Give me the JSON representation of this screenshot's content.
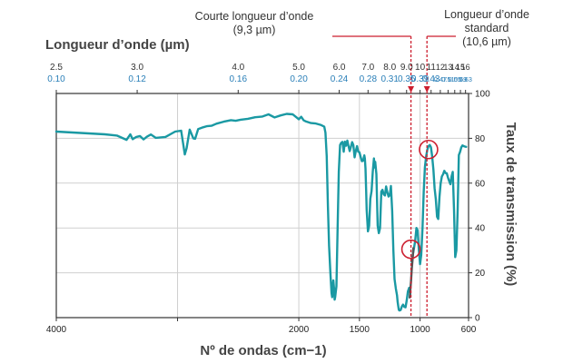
{
  "chart_data": {
    "type": "line",
    "xlabel": "Nº de ondas (cm−1)",
    "x2label": "Longueur d’onde (µm)",
    "ylabel": "Taux de transmission (%)",
    "xlim": [
      4000,
      600
    ],
    "ylim": [
      0,
      100
    ],
    "x_ticks": [
      4000,
      3000,
      2000,
      1500,
      1000,
      600
    ],
    "x_tick_labels": [
      "4000",
      "2000",
      "1500",
      "1000",
      "600"
    ],
    "x_tick_label_values": [
      4000,
      2000,
      1500,
      1000,
      600
    ],
    "y_ticks": [
      0,
      20,
      40,
      60,
      80,
      100
    ],
    "y_tick_labels": [
      "0",
      "20",
      "40",
      "60",
      "80",
      "100"
    ],
    "top_ticks": [
      {
        "um": "2.5",
        "inv": "0.10",
        "x": 4000
      },
      {
        "um": "3.0",
        "inv": "0.12",
        "x": 3333
      },
      {
        "um": "4.0",
        "inv": "0.16",
        "x": 2500
      },
      {
        "um": "5.0",
        "inv": "0.20",
        "x": 2000
      },
      {
        "um": "6.0",
        "inv": "0.24",
        "x": 1667
      },
      {
        "um": "7.0",
        "inv": "0.28",
        "x": 1429
      },
      {
        "um": "8.0",
        "inv": "0.31",
        "x": 1250
      },
      {
        "um": "9.0",
        "inv": "0.35",
        "x": 1111
      },
      {
        "um": "10",
        "inv": "0.39",
        "x": 1000
      },
      {
        "um": "11",
        "inv": "0.43",
        "x": 909
      },
      {
        "um": "12",
        "inv": "0.47",
        "x": 833
      },
      {
        "um": "13",
        "inv": "0.51",
        "x": 769
      },
      {
        "um": "14",
        "inv": "0.55",
        "x": 714
      },
      {
        "um": "15",
        "inv": "0.59",
        "x": 667
      },
      {
        "um": "16",
        "inv": "0.63",
        "x": 625
      }
    ],
    "grid": true,
    "colors": {
      "line": "#1a99a3",
      "grid": "#cfcfcf",
      "highlight": "#cc1f2f",
      "highlight_segment": "#555555"
    },
    "series": [
      {
        "values_x": [
          4000,
          3800,
          3600,
          3500,
          3420,
          3390,
          3370,
          3340,
          3310,
          3280,
          3250,
          3220,
          3180,
          3100,
          3020,
          2970,
          2940,
          2925,
          2900,
          2870,
          2855,
          2830,
          2790,
          2760,
          2720,
          2680,
          2620,
          2560,
          2520,
          2480,
          2420,
          2360,
          2300,
          2250,
          2200,
          2150,
          2100,
          2050,
          2000,
          1980,
          1960,
          1940,
          1900,
          1860,
          1820,
          1790,
          1780,
          1770,
          1760,
          1750,
          1740,
          1730,
          1725,
          1720,
          1715,
          1710,
          1705,
          1700,
          1690,
          1680,
          1670,
          1660,
          1650,
          1640,
          1630,
          1620,
          1610,
          1600,
          1590,
          1580,
          1570,
          1560,
          1550,
          1540,
          1530,
          1520,
          1510,
          1500,
          1490,
          1480,
          1470,
          1460,
          1455,
          1450,
          1445,
          1440,
          1430,
          1420,
          1410,
          1400,
          1390,
          1380,
          1375,
          1370,
          1360,
          1350,
          1340,
          1330,
          1320,
          1310,
          1300,
          1290,
          1280,
          1270,
          1260,
          1250,
          1240,
          1230,
          1220,
          1210,
          1200,
          1190,
          1185,
          1180,
          1175,
          1170,
          1160,
          1150,
          1140,
          1130,
          1120,
          1110,
          1100,
          1090,
          1080
        ],
        "values_y": [
          83,
          82.4,
          81.8,
          81.2,
          79.3,
          81.8,
          79.6,
          80.6,
          81.0,
          79.5,
          80.8,
          81.7,
          80.2,
          80.6,
          83.0,
          83.4,
          72.8,
          75.6,
          83.9,
          80.0,
          79.8,
          84.1,
          84.9,
          85.4,
          85.6,
          86.5,
          87.4,
          88.1,
          87.8,
          88.3,
          88.7,
          89.4,
          89.7,
          90.7,
          89.3,
          90.2,
          90.9,
          90.7,
          88.5,
          89.6,
          88.0,
          87.5,
          86.8,
          86.6,
          86.0,
          85.2,
          82.5,
          72.0,
          50.0,
          32.0,
          20.3,
          11.0,
          9.1,
          14.0,
          16.6,
          13.3,
          8.0,
          9.1,
          14.0,
          40.0,
          65.0,
          77.0,
          78.0,
          78.4,
          74.0,
          78.5,
          76.7,
          79.0,
          76.5,
          74.3,
          76.3,
          78.3,
          77.0,
          71.5,
          74.3,
          76.5,
          74.0,
          73.8,
          71.6,
          69.8,
          70.0,
          72.4,
          71.0,
          66.5,
          57.0,
          48.0,
          38.5,
          41.0,
          53.0,
          56.5,
          65.0,
          71.0,
          67.0,
          69.5,
          64.0,
          41.0,
          37.7,
          39.9,
          56.2,
          57.0,
          55.0,
          54.5,
          58.5,
          56.0,
          54.0,
          54.6,
          58.7,
          47.5,
          30.0,
          17.2,
          13.0,
          10.0,
          7.0,
          5.0,
          3.5,
          3.2,
          3.4,
          5.0,
          5.8,
          4.8,
          4.6,
          7.7,
          11.7,
          13.3,
          10.5
        ]
      },
      {
        "values_x": [
          1070,
          1060,
          1050,
          1040,
          1030,
          1020,
          1010,
          1000,
          990,
          980,
          970,
          960,
          950,
          940,
          930,
          920,
          910,
          900,
          890,
          880,
          870,
          860,
          850,
          840,
          830,
          820,
          810,
          800,
          790,
          780,
          770,
          760,
          750,
          740,
          730,
          720,
          710,
          700,
          690,
          680,
          670,
          660,
          650,
          640,
          630,
          620
        ],
        "values_y": [
          25.0,
          28.0,
          31.0,
          34.2,
          40.0,
          39.0,
          30.0,
          23.9,
          28.0,
          40.0,
          56.0,
          67.0,
          72.0,
          75.0,
          76.5,
          77.0,
          76.0,
          72.0,
          66.0,
          57.7,
          53.0,
          45.0,
          44.0,
          54.0,
          60.0,
          63.0,
          64.0,
          65.5,
          64.5,
          64.4,
          62.5,
          61.0,
          59.5,
          63.0,
          65.0,
          48.0,
          27.0,
          30.0,
          48.0,
          72.5,
          74.0,
          76.0,
          76.8,
          76.5,
          76.3,
          76.2
        ]
      }
    ],
    "highlight_segment": {
      "x": [
        1085,
        1075,
        1068,
        1060,
        1055
      ],
      "y": [
        9.0,
        16.0,
        22.0,
        27.0,
        31.0
      ]
    },
    "markers": [
      {
        "x": 1075,
        "y": 30.5
      },
      {
        "x": 930,
        "y": 75.0
      }
    ],
    "vlines": [
      {
        "x": 1075,
        "label_lines": [
          "Courte longueur d’onde",
          "(9,3 µm)"
        ]
      },
      {
        "x": 943,
        "label_lines": [
          "Longueur d’onde",
          "standard",
          "(10,6 µm)"
        ]
      }
    ]
  }
}
